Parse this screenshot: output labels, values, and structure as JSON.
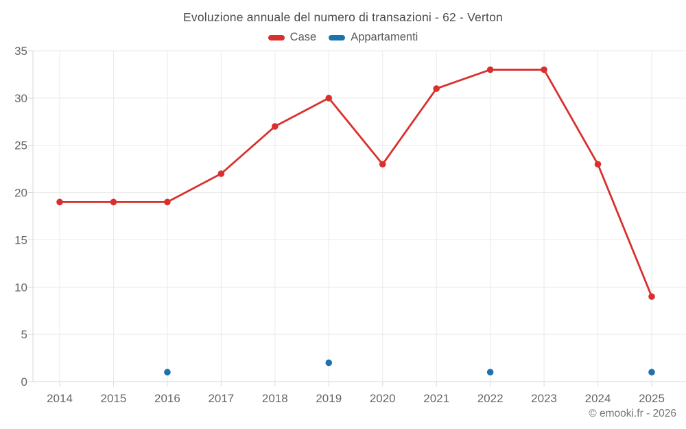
{
  "chart_data": {
    "type": "line",
    "title": "Evoluzione annuale del numero di transazioni - 62 - Verton",
    "categories": [
      "2014",
      "2015",
      "2016",
      "2017",
      "2018",
      "2019",
      "2020",
      "2021",
      "2022",
      "2023",
      "2024",
      "2025"
    ],
    "series": [
      {
        "name": "Case",
        "type": "line",
        "color": "#d9302e",
        "values": [
          19,
          19,
          19,
          22,
          27,
          30,
          23,
          31,
          33,
          33,
          23,
          9
        ]
      },
      {
        "name": "Appartamenti",
        "type": "scatter",
        "color": "#1c72ab",
        "values": [
          null,
          null,
          1,
          null,
          null,
          2,
          null,
          null,
          1,
          null,
          null,
          1
        ]
      }
    ],
    "xlabel": "",
    "ylabel": "",
    "ylim": [
      0,
      35
    ],
    "yticks": [
      0,
      5,
      10,
      15,
      20,
      25,
      30,
      35
    ],
    "grid": true,
    "legend_position": "top",
    "credit": "© emooki.fr - 2026"
  },
  "style": {
    "grid_color": "#e9e9e9",
    "axis_color": "#d8d8d8",
    "tick_label_color": "#666666",
    "title_color": "#4b4b4b",
    "background": "#ffffff"
  }
}
